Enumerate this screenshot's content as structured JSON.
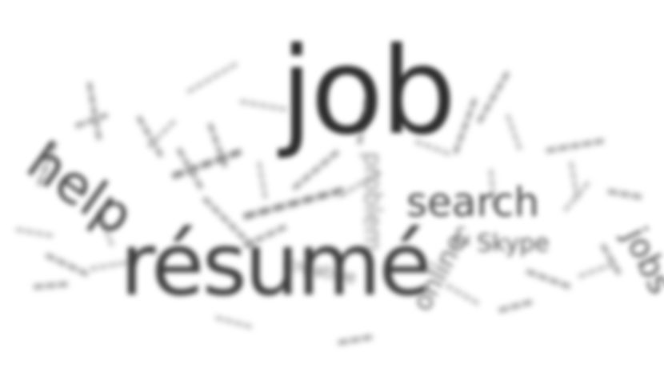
{
  "word_cloud": {
    "primary": {
      "job": "job",
      "resume": "résumé",
      "help": "help",
      "search": "search",
      "online": "online",
      "ampersand": "&",
      "skype": "Skype",
      "jobs": "jobs",
      "problem": "problem",
      "creative": "creative"
    },
    "colors": {
      "background": "#ffffff",
      "dark_text": "#2c2c2c",
      "light_text": "#9a9a9a"
    }
  }
}
